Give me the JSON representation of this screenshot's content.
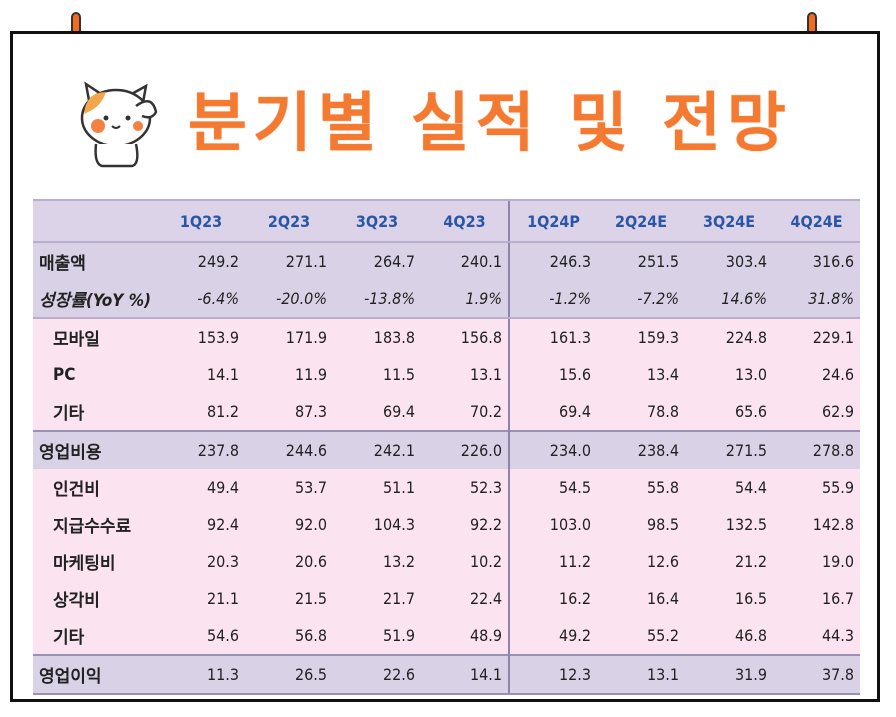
{
  "title": "분기별 실적 및 전망",
  "colors": {
    "accent": "#f47a31",
    "header_text": "#2a56a8",
    "band": "#d9d2e6",
    "sub_band": "#fbe3f0"
  },
  "icons": {
    "mascot": "cat-mascot-icon",
    "pins": "pushpin-icon"
  },
  "table": {
    "columns": [
      "",
      "1Q23",
      "2Q23",
      "3Q23",
      "4Q23",
      "1Q24P",
      "2Q24E",
      "3Q24E",
      "4Q24E"
    ],
    "rows": [
      {
        "label": "매출액",
        "values": [
          "249.2",
          "271.1",
          "264.7",
          "240.1",
          "246.3",
          "251.5",
          "303.4",
          "316.6"
        ]
      },
      {
        "label": "성장률(YoY %)",
        "values": [
          "-6.4%",
          "-20.0%",
          "-13.8%",
          "1.9%",
          "-1.2%",
          "-7.2%",
          "14.6%",
          "31.8%"
        ]
      },
      {
        "label": "모바일",
        "values": [
          "153.9",
          "171.9",
          "183.8",
          "156.8",
          "161.3",
          "159.3",
          "224.8",
          "229.1"
        ]
      },
      {
        "label": "PC",
        "values": [
          "14.1",
          "11.9",
          "11.5",
          "13.1",
          "15.6",
          "13.4",
          "13.0",
          "24.6"
        ]
      },
      {
        "label": "기타",
        "values": [
          "81.2",
          "87.3",
          "69.4",
          "70.2",
          "69.4",
          "78.8",
          "65.6",
          "62.9"
        ]
      },
      {
        "label": "영업비용",
        "values": [
          "237.8",
          "244.6",
          "242.1",
          "226.0",
          "234.0",
          "238.4",
          "271.5",
          "278.8"
        ]
      },
      {
        "label": "인건비",
        "values": [
          "49.4",
          "53.7",
          "51.1",
          "52.3",
          "54.5",
          "55.8",
          "54.4",
          "55.9"
        ]
      },
      {
        "label": "지급수수료",
        "values": [
          "92.4",
          "92.0",
          "104.3",
          "92.2",
          "103.0",
          "98.5",
          "132.5",
          "142.8"
        ]
      },
      {
        "label": "마케팅비",
        "values": [
          "20.3",
          "20.6",
          "13.2",
          "10.2",
          "11.2",
          "12.6",
          "21.2",
          "19.0"
        ]
      },
      {
        "label": "상각비",
        "values": [
          "21.1",
          "21.5",
          "21.7",
          "22.4",
          "16.2",
          "16.4",
          "16.5",
          "16.7"
        ]
      },
      {
        "label": "기타",
        "values": [
          "54.6",
          "56.8",
          "51.9",
          "48.9",
          "49.2",
          "55.2",
          "46.8",
          "44.3"
        ]
      },
      {
        "label": "영업이익",
        "values": [
          "11.3",
          "26.5",
          "22.6",
          "14.1",
          "12.3",
          "13.1",
          "31.9",
          "37.8"
        ]
      }
    ]
  }
}
